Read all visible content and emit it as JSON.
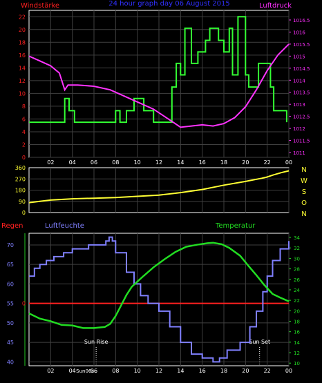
{
  "header": {
    "left": "Windstärke",
    "center": "24 hour graph day  06 August 2015",
    "right": "Luftdruck"
  },
  "x_ticks": [
    "02",
    "04",
    "06",
    "08",
    "10",
    "12",
    "14",
    "16",
    "18",
    "20",
    "22",
    "00"
  ],
  "colors": {
    "axis_left_wind": "#ff2020",
    "axis_right_pressure": "#ff30ff",
    "wind": "#33ff33",
    "pressure": "#ff33ff",
    "direction": "#ffff33",
    "humidity": "#8080ff",
    "temperature": "#22dd22",
    "rain": "#ff2020",
    "grid": "#404040",
    "tick_green": "#22cc22"
  },
  "chart_data": [
    {
      "type": "line",
      "name": "wind-pressure",
      "x_unit": "hour of day",
      "left_axis": {
        "label": "Windstärke",
        "ticks": [
          0,
          2,
          4,
          6,
          8,
          10,
          12,
          14,
          16,
          18,
          20,
          22
        ],
        "ylim": [
          0,
          23
        ]
      },
      "right_axis": {
        "label": "Luftdruck",
        "ticks": [
          "1011",
          "1011.5",
          "1012",
          "1012.5",
          "1013",
          "1013.5",
          "1014",
          "1014.5",
          "1015",
          "1015.5",
          "1016",
          "1016.5"
        ],
        "ylim": [
          1010.8,
          1016.9
        ]
      },
      "series": [
        {
          "name": "Windstärke",
          "axis": "left",
          "step": true,
          "points": [
            [
              0,
              5.5
            ],
            [
              3.3,
              9.2
            ],
            [
              3.7,
              7.3
            ],
            [
              4.2,
              5.5
            ],
            [
              8.0,
              7.3
            ],
            [
              8.4,
              5.5
            ],
            [
              9.0,
              7.3
            ],
            [
              9.7,
              9.2
            ],
            [
              10.6,
              7.3
            ],
            [
              11.5,
              5.5
            ],
            [
              13.2,
              11.0
            ],
            [
              13.6,
              14.7
            ],
            [
              14.0,
              12.9
            ],
            [
              14.4,
              20.2
            ],
            [
              15.0,
              14.7
            ],
            [
              15.6,
              16.5
            ],
            [
              16.3,
              18.3
            ],
            [
              16.7,
              20.2
            ],
            [
              17.5,
              18.3
            ],
            [
              18.0,
              16.5
            ],
            [
              18.5,
              20.2
            ],
            [
              18.8,
              12.9
            ],
            [
              19.3,
              22.0
            ],
            [
              20.0,
              12.9
            ],
            [
              20.3,
              11.0
            ],
            [
              21.2,
              14.7
            ],
            [
              22.3,
              11.0
            ],
            [
              22.6,
              7.3
            ],
            [
              23.8,
              5.5
            ]
          ]
        },
        {
          "name": "Luftdruck",
          "axis": "right",
          "points": [
            [
              0,
              1015.0
            ],
            [
              1.0,
              1014.8
            ],
            [
              2.0,
              1014.6
            ],
            [
              2.8,
              1014.3
            ],
            [
              3.3,
              1013.6
            ],
            [
              3.6,
              1013.8
            ],
            [
              4.5,
              1013.8
            ],
            [
              6.0,
              1013.75
            ],
            [
              7.5,
              1013.6
            ],
            [
              8.5,
              1013.4
            ],
            [
              9.5,
              1013.2
            ],
            [
              10.5,
              1013.0
            ],
            [
              11.5,
              1012.8
            ],
            [
              12.5,
              1012.5
            ],
            [
              13.5,
              1012.2
            ],
            [
              14.0,
              1012.05
            ],
            [
              15.0,
              1012.1
            ],
            [
              16.0,
              1012.15
            ],
            [
              17.0,
              1012.1
            ],
            [
              18.0,
              1012.2
            ],
            [
              19.0,
              1012.45
            ],
            [
              20.0,
              1012.9
            ],
            [
              21.0,
              1013.6
            ],
            [
              22.0,
              1014.4
            ],
            [
              23.0,
              1015.05
            ],
            [
              24.0,
              1015.5
            ]
          ]
        }
      ]
    },
    {
      "type": "line",
      "name": "wind-direction",
      "x_unit": "hour of day",
      "left_axis": {
        "ticks": [
          0,
          90,
          180,
          270,
          360
        ],
        "ylim": [
          0,
          360
        ]
      },
      "right_labels": [
        "N",
        "W",
        "S",
        "O",
        "N"
      ],
      "series": [
        {
          "name": "Windrichtung",
          "points": [
            [
              0,
              80
            ],
            [
              2,
              100
            ],
            [
              4,
              110
            ],
            [
              6,
              115
            ],
            [
              8,
              120
            ],
            [
              10,
              130
            ],
            [
              12,
              140
            ],
            [
              14,
              160
            ],
            [
              16,
              185
            ],
            [
              18,
              220
            ],
            [
              20,
              250
            ],
            [
              21.5,
              275
            ],
            [
              22,
              285
            ],
            [
              22.5,
              300
            ],
            [
              23.3,
              320
            ],
            [
              24,
              335
            ]
          ]
        }
      ]
    },
    {
      "type": "line",
      "name": "humidity-temperature",
      "x_unit": "hour of day",
      "labels": {
        "rain": "Regen",
        "humidity": "Luftfeuchte",
        "temperature": "Temperatur"
      },
      "left_axis": {
        "label": "Luftfeuchte",
        "ticks": [
          40,
          45,
          50,
          55,
          60,
          65,
          70
        ],
        "ylim": [
          39,
          73
        ]
      },
      "right_axis": {
        "label": "Temperatur",
        "ticks": [
          10,
          12,
          14,
          16,
          18,
          20,
          22,
          24,
          26,
          28,
          30,
          32,
          34
        ],
        "ylim": [
          9.5,
          34.8
        ]
      },
      "rain_axis": {
        "label": "Regen",
        "value_label": "0",
        "value": 0
      },
      "annotations": [
        {
          "label": "Sun Rise",
          "hour": 6.2
        },
        {
          "label": "Sun Set",
          "hour": 21.3
        },
        {
          "label": "Sun06sc",
          "hour": 5.3
        }
      ],
      "series": [
        {
          "name": "Luftfeuchte",
          "axis": "left",
          "step": true,
          "points": [
            [
              0,
              62
            ],
            [
              0.5,
              64
            ],
            [
              1,
              65
            ],
            [
              1.6,
              66
            ],
            [
              2.3,
              67
            ],
            [
              3.2,
              68
            ],
            [
              4,
              69
            ],
            [
              5.5,
              70
            ],
            [
              7.1,
              71
            ],
            [
              7.4,
              72
            ],
            [
              7.7,
              71
            ],
            [
              8,
              68
            ],
            [
              9,
              63
            ],
            [
              9.7,
              60
            ],
            [
              10.3,
              57
            ],
            [
              11,
              55
            ],
            [
              12,
              53
            ],
            [
              13,
              49
            ],
            [
              14,
              45
            ],
            [
              15,
              42
            ],
            [
              16,
              41
            ],
            [
              17,
              40
            ],
            [
              17.6,
              41
            ],
            [
              18.3,
              43
            ],
            [
              19.5,
              45
            ],
            [
              20.4,
              49
            ],
            [
              21,
              53
            ],
            [
              21.6,
              58
            ],
            [
              22,
              62
            ],
            [
              22.5,
              66
            ],
            [
              23.2,
              69
            ],
            [
              24,
              71
            ]
          ]
        },
        {
          "name": "Temperatur",
          "axis": "right",
          "points": [
            [
              0,
              19.5
            ],
            [
              1,
              18.5
            ],
            [
              2,
              18
            ],
            [
              3,
              17.3
            ],
            [
              4,
              17.2
            ],
            [
              5,
              16.7
            ],
            [
              6,
              16.7
            ],
            [
              7,
              16.9
            ],
            [
              7.5,
              17.5
            ],
            [
              8,
              19
            ],
            [
              8.5,
              21
            ],
            [
              9,
              23
            ],
            [
              9.5,
              24.6
            ],
            [
              10.5,
              26.5
            ],
            [
              11.5,
              28.3
            ],
            [
              12.5,
              29.8
            ],
            [
              13.5,
              31.2
            ],
            [
              14.5,
              32.2
            ],
            [
              15.5,
              32.6
            ],
            [
              16.5,
              32.9
            ],
            [
              17,
              33.0
            ],
            [
              17.8,
              32.7
            ],
            [
              18.5,
              32.0
            ],
            [
              19.5,
              30.5
            ],
            [
              20.3,
              28.5
            ],
            [
              21,
              26.8
            ],
            [
              21.7,
              25
            ],
            [
              22.5,
              23.2
            ],
            [
              23.2,
              22.5
            ],
            [
              24,
              21.8
            ]
          ]
        },
        {
          "name": "Regen",
          "axis": "rain",
          "points": [
            [
              0,
              0
            ],
            [
              24,
              0
            ]
          ]
        }
      ]
    }
  ]
}
